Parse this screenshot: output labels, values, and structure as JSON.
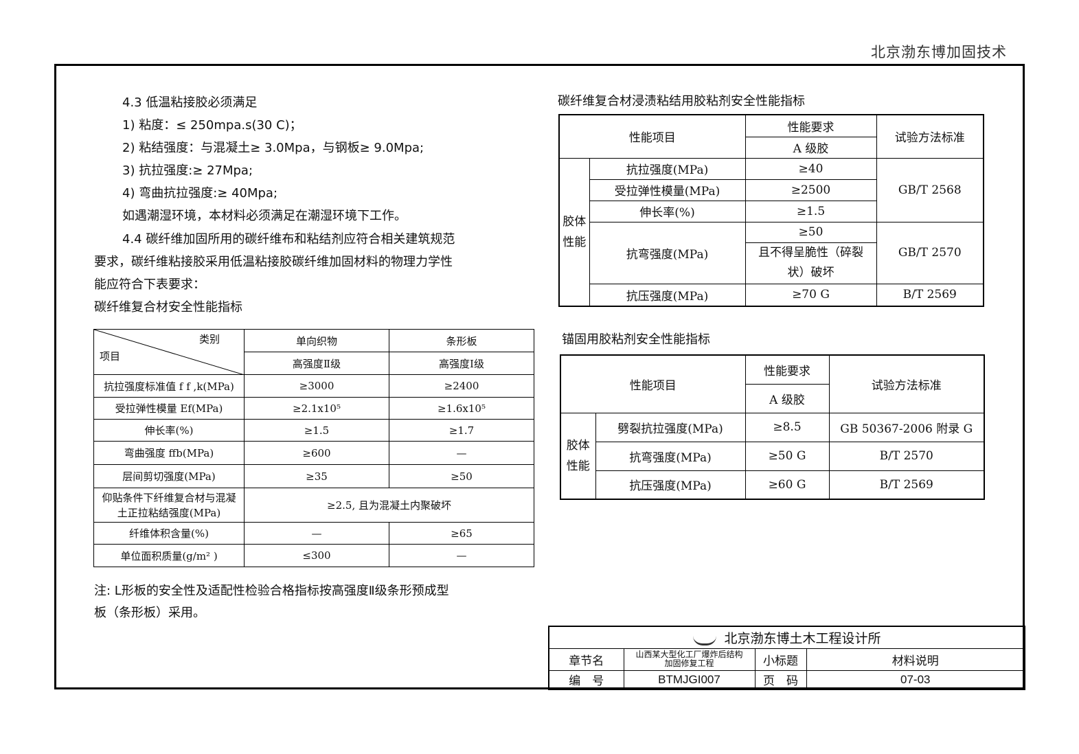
{
  "header": "北京渤东博加固技术",
  "text_lines": [
    "4.3 低温粘接胶必须满足",
    "1) 粘度：≤ 250mpa.s(30 C)；",
    "2) 粘结强度：与混凝土≥ 3.0Mpa，与钢板≥ 9.0Mpa;",
    "3) 抗拉强度:≥ 27Mpa;",
    "4) 弯曲抗拉强度:≥ 40Mpa;",
    "如遇潮湿环境，本材料必须满足在潮湿环境下工作。",
    "4.4 碳纤维加固所用的碳纤维布和粘结剂应符合相关建筑规范",
    "要求，碳纤维粘接胶采用低温粘接胶碳纤维加固材料的物理力学性",
    "能应符合下表要求：",
    "碳纤维复合材安全性能指标"
  ],
  "table1": {
    "corner_top": "类别",
    "corner_bottom": "项目",
    "headers": [
      "单向织物",
      "条形板"
    ],
    "subheaders": [
      "高强度Ⅱ级",
      "高强度Ⅰ级"
    ],
    "rows": [
      [
        "抗拉强度标准值 f f ,k(MPa)",
        "≥3000",
        "≥2400"
      ],
      [
        "受拉弹性模量 Ef(MPa)",
        "≥2.1x10⁵",
        "≥1.6x10⁵"
      ],
      [
        "伸长率(%)",
        "≥1.5",
        "≥1.7"
      ],
      [
        "弯曲强度 ffb(MPa)",
        "≥600",
        "—"
      ],
      [
        "层间剪切强度(MPa)",
        "≥35",
        "≥50"
      ],
      [
        "仰贴条件下纤维复合材与混凝土正拉粘结强度(MPa)",
        "≥2.5, 且为混凝土内聚破坏",
        ""
      ],
      [
        "纤维体积含量(%)",
        "—",
        "≥65"
      ],
      [
        "单位面积质量(g/m² )",
        "≤300",
        "—"
      ]
    ]
  },
  "note_lines": [
    "注: L形板的安全性及适配性检验合格指标按高强度Ⅱ级条形预成型",
    "板（条形板）采用。"
  ],
  "table2": {
    "title": "碳纤维复合材浸渍粘结用胶粘剂安全性能指标",
    "h_item": "性能项目",
    "h_req": "性能要求",
    "h_grade": "A 级胶",
    "h_std": "试验方法标准",
    "group": "胶体性能",
    "rows": [
      [
        "抗拉强度(MPa)",
        "≥40",
        ""
      ],
      [
        "受拉弹性模量(MPa)",
        "≥2500",
        "GB/T 2568"
      ],
      [
        "伸长率(%)",
        "≥1.5",
        ""
      ],
      [
        "抗弯强度(MPa)",
        "≥50",
        "GB/T 2570"
      ],
      [
        "",
        "且不得呈脆性（碎裂状）破坏",
        ""
      ],
      [
        "抗压强度(MPa)",
        "≥70 G",
        "B/T 2569"
      ]
    ]
  },
  "table3": {
    "title": "锚固用胶粘剂安全性能指标",
    "h_item": "性能项目",
    "h_req": "性能要求",
    "h_grade": "A 级胶",
    "h_std": "试验方法标准",
    "group": "胶体性能",
    "rows": [
      [
        "劈裂抗拉强度(MPa)",
        "≥8.5",
        "GB 50367-2006 附录 G"
      ],
      [
        "抗弯强度(MPa)",
        "≥50 G",
        "B/T 2570"
      ],
      [
        "抗压强度(MPa)",
        "≥60 G",
        "B/T 2569"
      ]
    ]
  },
  "title_block": {
    "company": "北京渤东博土木工程设计所",
    "chapter_label": "章节名",
    "chapter_value": "山西某大型化工厂爆炸后结构加固修复工程",
    "subtitle_label": "小标题",
    "subtitle_value": "材料说明",
    "code_label": "编　号",
    "code_value": "BTMJGI007",
    "page_label": "页　码",
    "page_value": "07-03"
  }
}
